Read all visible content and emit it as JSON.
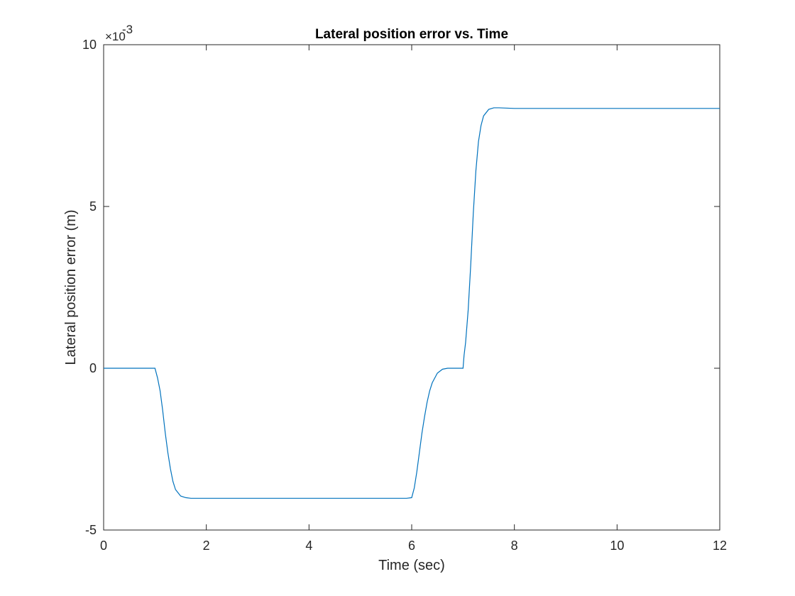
{
  "chart_data": {
    "type": "line",
    "title": "Lateral position error vs. Time",
    "xlabel": "Time (sec)",
    "ylabel": "Lateral position error (m)",
    "xlim": [
      0,
      12
    ],
    "ylim": [
      -5,
      10
    ],
    "y_multiplier_base": "×10",
    "y_multiplier_exp": "-3",
    "xticks": [
      "0",
      "2",
      "4",
      "6",
      "8",
      "10",
      "12"
    ],
    "yticks": [
      "-5",
      "0",
      "5",
      "10"
    ],
    "grid": false,
    "series": [
      {
        "color": "#0072BD",
        "x": [
          0,
          1.0,
          1.05,
          1.1,
          1.15,
          1.2,
          1.25,
          1.3,
          1.35,
          1.4,
          1.5,
          1.6,
          1.7,
          1.8,
          2.0,
          3.0,
          4.0,
          5.0,
          5.9,
          6.0,
          6.05,
          6.1,
          6.15,
          6.2,
          6.25,
          6.3,
          6.35,
          6.4,
          6.5,
          6.6,
          6.7,
          6.8,
          6.9,
          7.0,
          7.02,
          7.05,
          7.1,
          7.15,
          7.2,
          7.25,
          7.3,
          7.35,
          7.4,
          7.5,
          7.6,
          7.7,
          8.0,
          9.0,
          10.0,
          11.0,
          12.0
        ],
        "y": [
          0,
          0,
          -0.3,
          -0.7,
          -1.3,
          -2.0,
          -2.6,
          -3.1,
          -3.5,
          -3.75,
          -3.95,
          -4.0,
          -4.02,
          -4.02,
          -4.02,
          -4.02,
          -4.02,
          -4.02,
          -4.02,
          -4.0,
          -3.7,
          -3.2,
          -2.6,
          -2.0,
          -1.5,
          -1.05,
          -0.7,
          -0.45,
          -0.15,
          -0.03,
          0,
          0,
          0,
          0,
          0.4,
          0.8,
          1.8,
          3.2,
          4.8,
          6.1,
          7.0,
          7.5,
          7.8,
          8.0,
          8.05,
          8.05,
          8.03,
          8.03,
          8.03,
          8.03,
          8.03
        ]
      }
    ]
  }
}
